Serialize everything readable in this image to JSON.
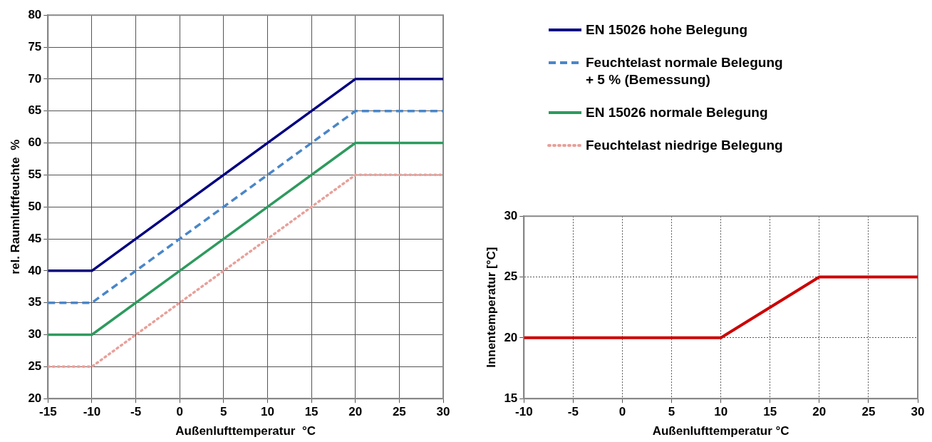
{
  "chart_data": [
    {
      "type": "line",
      "xlabel": "Außenlufttemperatur  °C",
      "ylabel": "rel. Raumluftfeuchte  %",
      "x": [
        -15,
        -10,
        20,
        30
      ],
      "xlim": [
        -15,
        30
      ],
      "xticks": [
        -15,
        -10,
        -5,
        0,
        5,
        10,
        15,
        20,
        25,
        30
      ],
      "ylim": [
        20,
        80
      ],
      "yticks": [
        20,
        25,
        30,
        35,
        40,
        45,
        50,
        55,
        60,
        65,
        70,
        75,
        80
      ],
      "grid": true,
      "legend": "right",
      "marker": "none",
      "series": [
        {
          "name": "EN 15026 hohe Belegung",
          "color": "#000080",
          "values": [
            40,
            40,
            70,
            70
          ],
          "line_style": "solid"
        },
        {
          "name": "Feuchtelast normale Belegung + 5 % (Bemessung)",
          "color": "#4a86c8",
          "values": [
            35,
            35,
            65,
            65
          ],
          "line_style": "dashed"
        },
        {
          "name": "EN 15026 normale Belegung",
          "color": "#2e9a5e",
          "values": [
            30,
            30,
            60,
            60
          ],
          "line_style": "solid"
        },
        {
          "name": "Feuchtelast niedrige Belegung",
          "color": "#e8a09a",
          "values": [
            25,
            25,
            55,
            55
          ],
          "line_style": "dotted"
        }
      ]
    },
    {
      "type": "line",
      "xlabel": "Außenlufttemperatur °C",
      "ylabel": "Innentemperatur [°C]",
      "x": [
        -10,
        10,
        20,
        30
      ],
      "xlim": [
        -10,
        30
      ],
      "xticks": [
        -10,
        -5,
        0,
        5,
        10,
        15,
        20,
        25,
        30
      ],
      "ylim": [
        15,
        30
      ],
      "yticks": [
        15,
        20,
        25,
        30
      ],
      "grid": true,
      "marker": "none",
      "series": [
        {
          "color": "#cc0000",
          "values": [
            20,
            20,
            25,
            25
          ],
          "line_style": "solid"
        }
      ]
    }
  ]
}
